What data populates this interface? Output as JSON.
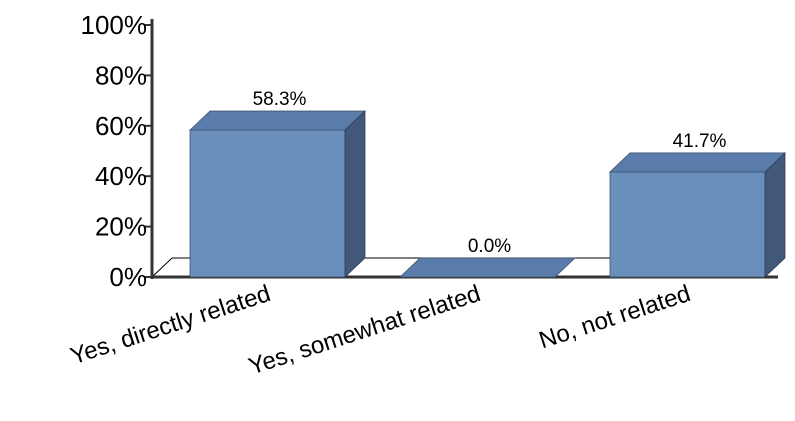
{
  "chart_data": {
    "type": "bar",
    "title": "",
    "xlabel": "",
    "ylabel": "",
    "categories": [
      "Yes, directly related",
      "Yes, somewhat related",
      "No, not related"
    ],
    "values": [
      58.3,
      0.0,
      41.7
    ],
    "data_labels": [
      "58.3%",
      "0.0%",
      "41.7%"
    ],
    "ylim": [
      0,
      100
    ],
    "yticks": [
      {
        "value": 0,
        "label": "0%"
      },
      {
        "value": 20,
        "label": "20%"
      },
      {
        "value": 40,
        "label": "40%"
      },
      {
        "value": 60,
        "label": "60%"
      },
      {
        "value": 80,
        "label": "80%"
      },
      {
        "value": 100,
        "label": "100%"
      }
    ],
    "grid": false,
    "legend": "none",
    "style": "3d",
    "colors": {
      "bar_front": "#6b8fbd",
      "bar_top": "#5a7cab",
      "bar_side": "#42587a",
      "axis": "#333333"
    }
  }
}
